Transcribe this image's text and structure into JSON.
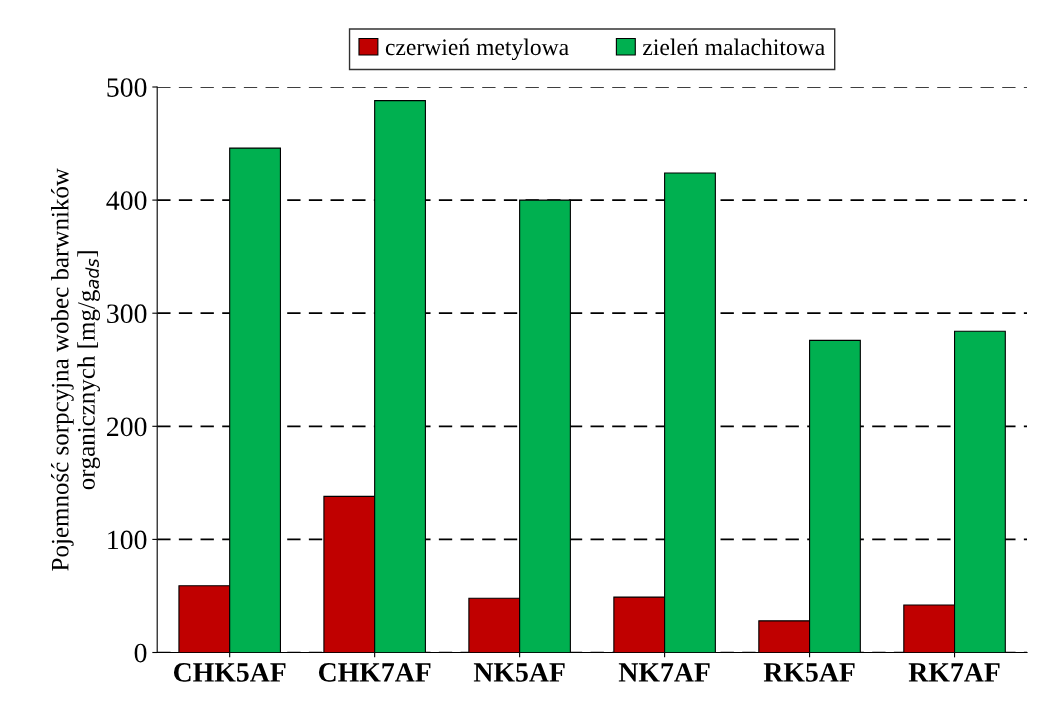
{
  "chart_data": {
    "type": "bar",
    "ylabel": "Pojemność sorpcyjna wobec barwników\norganicznych [mg/g$_{ads}$]",
    "categories": [
      "CHK5AF",
      "CHK7AF",
      "NK5AF",
      "NK7AF",
      "RK5AF",
      "RK7AF"
    ],
    "series": [
      {
        "name": "czerwień metylowa",
        "color": "#c00000",
        "values": [
          59,
          138,
          48,
          49,
          28,
          42
        ]
      },
      {
        "name": "zieleń malachitowa",
        "color": "#00b050",
        "values": [
          446,
          488,
          400,
          424,
          276,
          284
        ]
      }
    ],
    "ylim": [
      0,
      500
    ],
    "yticks": [
      0,
      100,
      200,
      300,
      400,
      500
    ],
    "grid": "y",
    "legend": "top"
  }
}
